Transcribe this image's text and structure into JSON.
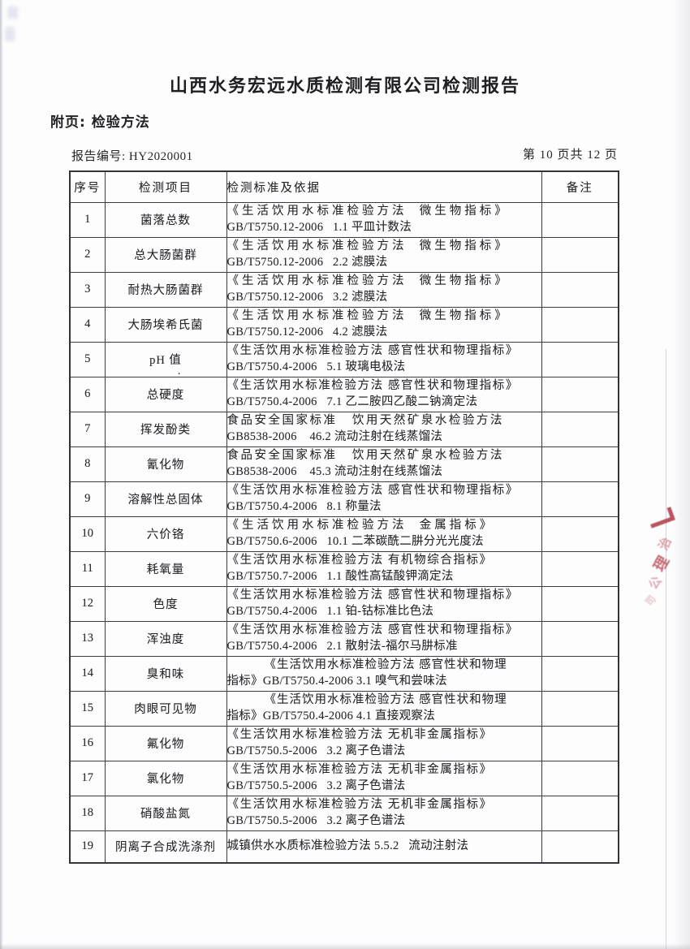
{
  "page": {
    "title": "山西水务宏远水质检测有限公司检测报告",
    "subtitle": "附页: 检验方法",
    "report_no": "报告编号: HY2020001",
    "page_indicator": "第 10 页共 12 页"
  },
  "table": {
    "headers": [
      "序号",
      "检测项目",
      "检测标准及依据",
      "备注"
    ],
    "rows": [
      {
        "no": "1",
        "item": "菌落总数",
        "s1": "《生活饮用水标准检验方法  微生物指标》",
        "s2": "GB/T5750.12-2006   1.1 平皿计数法",
        "style": "spread",
        "remark": ""
      },
      {
        "no": "2",
        "item": "总大肠菌群",
        "s1": "《生活饮用水标准检验方法  微生物指标》",
        "s2": "GB/T5750.12-2006   2.2 滤膜法",
        "style": "spread",
        "remark": ""
      },
      {
        "no": "3",
        "item": "耐热大肠菌群",
        "s1": "《生活饮用水标准检验方法  微生物指标》",
        "s2": "GB/T5750.12-2006   3.2 滤膜法",
        "style": "spread",
        "remark": ""
      },
      {
        "no": "4",
        "item": "大肠埃希氏菌",
        "s1": "《生活饮用水标准检验方法  微生物指标》",
        "s2": "GB/T5750.12-2006   4.2 滤膜法",
        "style": "spread",
        "remark": ""
      },
      {
        "no": "5",
        "item": "pH 值",
        "s1": "《生活饮用水标准检验方法 感官性状和物理指标》",
        "s2": "GB/T5750.4-2006   5.1 玻璃电极法",
        "style": "sm",
        "remark": "",
        "dot": true
      },
      {
        "no": "6",
        "item": "总硬度",
        "s1": "《生活饮用水标准检验方法 感官性状和物理指标》",
        "s2": "GB/T5750.4-2006   7.1 乙二胺四乙酸二钠滴定法",
        "style": "sm",
        "remark": ""
      },
      {
        "no": "7",
        "item": "挥发酚类",
        "s1": "食品安全国家标准   饮用天然矿泉水检验方法",
        "s2": "GB8538-2006    46.2 流动注射在线蒸馏法",
        "style": "md",
        "remark": ""
      },
      {
        "no": "8",
        "item": "氰化物",
        "s1": "食品安全国家标准   饮用天然矿泉水检验方法",
        "s2": "GB8538-2006    45.3 流动注射在线蒸馏法",
        "style": "md",
        "remark": ""
      },
      {
        "no": "9",
        "item": "溶解性总固体",
        "s1": "《生活饮用水标准检验方法 感官性状和物理指标》",
        "s2": "GB/T5750.4-2006   8.1 称量法",
        "style": "sm",
        "remark": ""
      },
      {
        "no": "10",
        "item": "六价铬",
        "s1": "《生活饮用水标准检验方法  金属指标》",
        "s2": "GB/T5750.6-2006   10.1 二苯碳酰二肼分光光度法",
        "style": "spread",
        "remark": ""
      },
      {
        "no": "11",
        "item": "耗氧量",
        "s1": "《生活饮用水标准检验方法 有机物综合指标》",
        "s2": "GB/T5750.7-2006   1.1 酸性高锰酸钾滴定法",
        "style": "sm",
        "remark": ""
      },
      {
        "no": "12",
        "item": "色度",
        "s1": "《生活饮用水标准检验方法 感官性状和物理指标》",
        "s2": "GB/T5750.4-2006   1.1 铂-钴标准比色法",
        "style": "sm",
        "remark": ""
      },
      {
        "no": "13",
        "item": "浑浊度",
        "s1": "《生活饮用水标准检验方法 感官性状和物理指标》",
        "s2": "GB/T5750.4-2006   2.1 散射法-福尔马肼标准",
        "style": "sm",
        "remark": ""
      },
      {
        "no": "14",
        "item": "臭和味",
        "s1": "《生活饮用水标准检验方法 感官性状和物理",
        "s2": "指标》GB/T5750.4-2006 3.1 嗅气和尝味法",
        "style": "indent",
        "remark": ""
      },
      {
        "no": "15",
        "item": "肉眼可见物",
        "s1": "《生活饮用水标准检验方法 感官性状和物理",
        "s2": "指标》GB/T5750.4-2006 4.1 直接观察法",
        "style": "indent",
        "remark": ""
      },
      {
        "no": "16",
        "item": "氟化物",
        "s1": "《生活饮用水标准检验方法 无机非金属指标》",
        "s2": "GB/T5750.5-2006   3.2 离子色谱法",
        "style": "sm",
        "remark": ""
      },
      {
        "no": "17",
        "item": "氯化物",
        "s1": "《生活饮用水标准检验方法 无机非金属指标》",
        "s2": "GB/T5750.5-2006   3.2 离子色谱法",
        "style": "sm",
        "remark": ""
      },
      {
        "no": "18",
        "item": "硝酸盐氮",
        "s1": "《生活饮用水标准检验方法 无机非金属指标》",
        "s2": "GB/T5750.5-2006   3.2 离子色谱法",
        "style": "sm",
        "remark": ""
      },
      {
        "no": "19",
        "item": "阴离子合成洗涤剂",
        "s1": "城镇供水水质标准检验方法 5.5.2   流动注射法",
        "s2": "",
        "style": "",
        "remark": ""
      }
    ]
  },
  "seal": {
    "description": "partial red seal fragment clipped at right page edge",
    "color": "#b5434f",
    "glyphs": [
      "治",
      "理",
      "公",
      "司"
    ]
  }
}
